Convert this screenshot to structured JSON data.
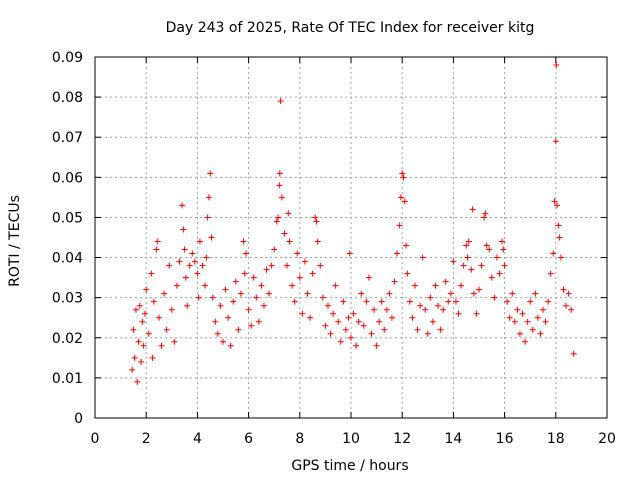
{
  "chart_data": {
    "type": "scatter",
    "title": "Day 243 of 2025, Rate Of TEC Index for receiver kitg",
    "xlabel": "GPS time / hours",
    "ylabel": "ROTI / TECUs",
    "xlim": [
      0,
      20
    ],
    "ylim": [
      0,
      0.09
    ],
    "x_ticks": [
      "0",
      "2",
      "4",
      "6",
      "8",
      "10",
      "12",
      "14",
      "16",
      "18",
      "20"
    ],
    "y_ticks": [
      "0",
      "0.01",
      "0.02",
      "0.03",
      "0.04",
      "0.05",
      "0.06",
      "0.07",
      "0.08",
      "0.09"
    ],
    "grid": true,
    "marker": "+",
    "series": [
      {
        "name": "ROTI",
        "color": "#ff0000",
        "points": [
          [
            1.45,
            0.012
          ],
          [
            1.5,
            0.022
          ],
          [
            1.55,
            0.015
          ],
          [
            1.6,
            0.027
          ],
          [
            1.65,
            0.009
          ],
          [
            1.7,
            0.019
          ],
          [
            1.75,
            0.028
          ],
          [
            1.8,
            0.014
          ],
          [
            1.85,
            0.024
          ],
          [
            1.9,
            0.018
          ],
          [
            1.95,
            0.026
          ],
          [
            2.0,
            0.032
          ],
          [
            2.1,
            0.021
          ],
          [
            2.2,
            0.036
          ],
          [
            2.25,
            0.015
          ],
          [
            2.3,
            0.029
          ],
          [
            2.4,
            0.042
          ],
          [
            2.45,
            0.044
          ],
          [
            2.5,
            0.025
          ],
          [
            2.6,
            0.018
          ],
          [
            2.7,
            0.031
          ],
          [
            2.8,
            0.022
          ],
          [
            2.9,
            0.038
          ],
          [
            3.0,
            0.027
          ],
          [
            3.1,
            0.019
          ],
          [
            3.2,
            0.033
          ],
          [
            3.3,
            0.039
          ],
          [
            3.4,
            0.053
          ],
          [
            3.45,
            0.047
          ],
          [
            3.5,
            0.042
          ],
          [
            3.55,
            0.035
          ],
          [
            3.6,
            0.028
          ],
          [
            3.7,
            0.038
          ],
          [
            3.8,
            0.041
          ],
          [
            3.9,
            0.039
          ],
          [
            4.0,
            0.036
          ],
          [
            4.05,
            0.03
          ],
          [
            4.1,
            0.044
          ],
          [
            4.2,
            0.038
          ],
          [
            4.3,
            0.033
          ],
          [
            4.35,
            0.04
          ],
          [
            4.4,
            0.05
          ],
          [
            4.45,
            0.055
          ],
          [
            4.5,
            0.061
          ],
          [
            4.55,
            0.045
          ],
          [
            4.6,
            0.03
          ],
          [
            4.7,
            0.024
          ],
          [
            4.8,
            0.021
          ],
          [
            4.9,
            0.028
          ],
          [
            5.0,
            0.019
          ],
          [
            5.1,
            0.032
          ],
          [
            5.2,
            0.025
          ],
          [
            5.3,
            0.018
          ],
          [
            5.4,
            0.029
          ],
          [
            5.5,
            0.034
          ],
          [
            5.6,
            0.022
          ],
          [
            5.7,
            0.031
          ],
          [
            5.8,
            0.044
          ],
          [
            5.85,
            0.036
          ],
          [
            5.9,
            0.041
          ],
          [
            6.0,
            0.027
          ],
          [
            6.1,
            0.023
          ],
          [
            6.2,
            0.035
          ],
          [
            6.3,
            0.03
          ],
          [
            6.4,
            0.024
          ],
          [
            6.5,
            0.033
          ],
          [
            6.6,
            0.028
          ],
          [
            6.7,
            0.037
          ],
          [
            6.8,
            0.031
          ],
          [
            6.9,
            0.038
          ],
          [
            7.0,
            0.042
          ],
          [
            7.1,
            0.049
          ],
          [
            7.15,
            0.05
          ],
          [
            7.2,
            0.058
          ],
          [
            7.22,
            0.061
          ],
          [
            7.25,
            0.079
          ],
          [
            7.3,
            0.055
          ],
          [
            7.4,
            0.046
          ],
          [
            7.5,
            0.038
          ],
          [
            7.55,
            0.051
          ],
          [
            7.6,
            0.044
          ],
          [
            7.7,
            0.033
          ],
          [
            7.8,
            0.029
          ],
          [
            7.9,
            0.041
          ],
          [
            8.0,
            0.035
          ],
          [
            8.1,
            0.026
          ],
          [
            8.2,
            0.039
          ],
          [
            8.3,
            0.031
          ],
          [
            8.4,
            0.025
          ],
          [
            8.5,
            0.036
          ],
          [
            8.6,
            0.05
          ],
          [
            8.65,
            0.049
          ],
          [
            8.7,
            0.044
          ],
          [
            8.8,
            0.038
          ],
          [
            8.9,
            0.03
          ],
          [
            9.0,
            0.023
          ],
          [
            9.1,
            0.028
          ],
          [
            9.2,
            0.021
          ],
          [
            9.3,
            0.026
          ],
          [
            9.4,
            0.033
          ],
          [
            9.5,
            0.024
          ],
          [
            9.6,
            0.019
          ],
          [
            9.7,
            0.029
          ],
          [
            9.8,
            0.022
          ],
          [
            9.9,
            0.025
          ],
          [
            9.95,
            0.041
          ],
          [
            10.0,
            0.02
          ],
          [
            10.1,
            0.026
          ],
          [
            10.2,
            0.018
          ],
          [
            10.3,
            0.024
          ],
          [
            10.4,
            0.031
          ],
          [
            10.5,
            0.023
          ],
          [
            10.6,
            0.029
          ],
          [
            10.7,
            0.035
          ],
          [
            10.8,
            0.021
          ],
          [
            10.9,
            0.027
          ],
          [
            11.0,
            0.018
          ],
          [
            11.1,
            0.024
          ],
          [
            11.2,
            0.029
          ],
          [
            11.3,
            0.022
          ],
          [
            11.4,
            0.027
          ],
          [
            11.5,
            0.031
          ],
          [
            11.6,
            0.025
          ],
          [
            11.7,
            0.034
          ],
          [
            11.8,
            0.041
          ],
          [
            11.9,
            0.048
          ],
          [
            11.95,
            0.055
          ],
          [
            12.0,
            0.061
          ],
          [
            12.05,
            0.06
          ],
          [
            12.1,
            0.054
          ],
          [
            12.15,
            0.043
          ],
          [
            12.2,
            0.036
          ],
          [
            12.3,
            0.029
          ],
          [
            12.4,
            0.025
          ],
          [
            12.5,
            0.033
          ],
          [
            12.6,
            0.022
          ],
          [
            12.7,
            0.028
          ],
          [
            12.8,
            0.04
          ],
          [
            12.9,
            0.027
          ],
          [
            13.0,
            0.021
          ],
          [
            13.1,
            0.03
          ],
          [
            13.2,
            0.024
          ],
          [
            13.3,
            0.033
          ],
          [
            13.4,
            0.028
          ],
          [
            13.5,
            0.022
          ],
          [
            13.6,
            0.027
          ],
          [
            13.7,
            0.034
          ],
          [
            13.8,
            0.029
          ],
          [
            13.9,
            0.031
          ],
          [
            14.0,
            0.039
          ],
          [
            14.1,
            0.029
          ],
          [
            14.2,
            0.026
          ],
          [
            14.3,
            0.033
          ],
          [
            14.4,
            0.038
          ],
          [
            14.5,
            0.043
          ],
          [
            14.55,
            0.04
          ],
          [
            14.6,
            0.044
          ],
          [
            14.7,
            0.037
          ],
          [
            14.75,
            0.052
          ],
          [
            14.8,
            0.031
          ],
          [
            14.9,
            0.026
          ],
          [
            15.0,
            0.032
          ],
          [
            15.1,
            0.038
          ],
          [
            15.2,
            0.05
          ],
          [
            15.25,
            0.051
          ],
          [
            15.3,
            0.043
          ],
          [
            15.4,
            0.042
          ],
          [
            15.5,
            0.035
          ],
          [
            15.6,
            0.03
          ],
          [
            15.7,
            0.04
          ],
          [
            15.8,
            0.036
          ],
          [
            15.9,
            0.044
          ],
          [
            15.95,
            0.042
          ],
          [
            16.0,
            0.038
          ],
          [
            16.1,
            0.029
          ],
          [
            16.2,
            0.025
          ],
          [
            16.3,
            0.031
          ],
          [
            16.4,
            0.024
          ],
          [
            16.5,
            0.027
          ],
          [
            16.6,
            0.021
          ],
          [
            16.7,
            0.026
          ],
          [
            16.8,
            0.019
          ],
          [
            16.9,
            0.024
          ],
          [
            17.0,
            0.029
          ],
          [
            17.1,
            0.022
          ],
          [
            17.2,
            0.031
          ],
          [
            17.3,
            0.025
          ],
          [
            17.4,
            0.021
          ],
          [
            17.5,
            0.027
          ],
          [
            17.6,
            0.024
          ],
          [
            17.7,
            0.029
          ],
          [
            17.8,
            0.036
          ],
          [
            17.9,
            0.041
          ],
          [
            17.95,
            0.054
          ],
          [
            18.0,
            0.069
          ],
          [
            18.02,
            0.088
          ],
          [
            18.05,
            0.053
          ],
          [
            18.1,
            0.048
          ],
          [
            18.15,
            0.045
          ],
          [
            18.2,
            0.04
          ],
          [
            18.3,
            0.032
          ],
          [
            18.4,
            0.028
          ],
          [
            18.5,
            0.031
          ],
          [
            18.6,
            0.027
          ],
          [
            18.7,
            0.016
          ]
        ]
      }
    ]
  }
}
